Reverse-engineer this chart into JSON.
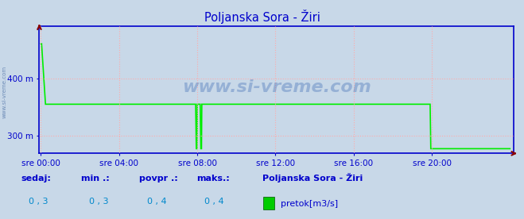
{
  "title": "Poljanska Sora - Žiri",
  "title_color": "#0000cc",
  "bg_color": "#c8d8e8",
  "plot_bg_color": "#c8d8e8",
  "line_color": "#00ee00",
  "axis_color": "#0000cc",
  "grid_color": "#ffaaaa",
  "watermark": "www.si-vreme.com",
  "watermark_color": "#2255aa",
  "ylim_min": 270,
  "ylim_max": 490,
  "y_ticks": [
    300,
    400
  ],
  "y_tick_labels": [
    "300 m",
    "400 m"
  ],
  "x_tick_positions": [
    0,
    240,
    480,
    720,
    960,
    1200
  ],
  "x_tick_labels": [
    "sre 00:00",
    "sre 04:00",
    "sre 08:00",
    "sre 12:00",
    "sre 16:00",
    "sre 20:00"
  ],
  "n_points": 1441,
  "footer_label_color": "#0000cc",
  "footer_value_color": "#0088cc",
  "footer_labels": [
    "sedaj:",
    "min .:",
    "povpr .:",
    "maks.:"
  ],
  "footer_values": [
    "0 , 3",
    "0 , 3",
    "0 , 4",
    "0 , 4"
  ],
  "legend_title": "Poljanska Sora - Žiri",
  "legend_item": "pretok[m3/s]",
  "legend_color": "#00cc00",
  "arrow_color": "#880000",
  "spine_color": "#0000cc",
  "watermark_alpha": 0.3
}
